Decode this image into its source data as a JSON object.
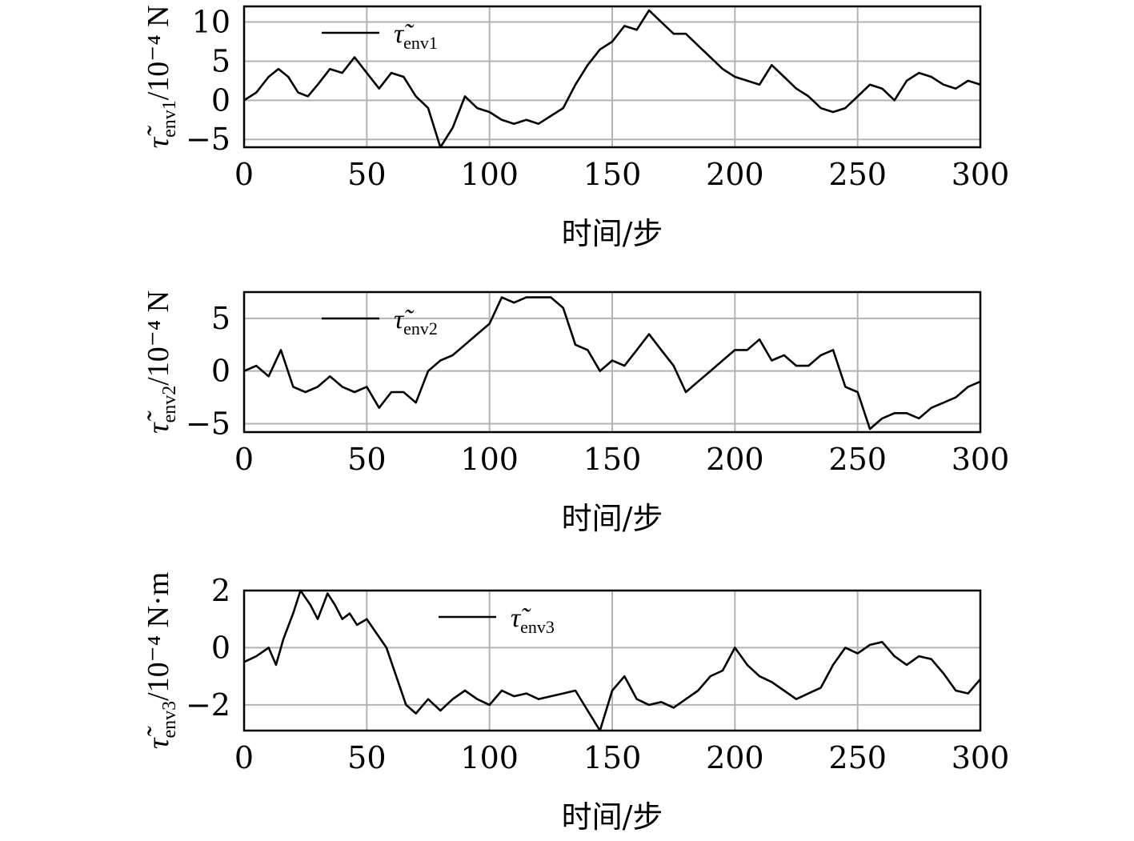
{
  "chart_data": [
    {
      "type": "line",
      "xlabel": "时间/步",
      "ylabel": {
        "prefix": "τ̃",
        "sub": "env1",
        "suffix": "/10⁻⁴ N"
      },
      "legend": {
        "symbol": "τ̃",
        "sub": "env1",
        "placement": "top-left"
      },
      "xlim": [
        0,
        300
      ],
      "ylim": [
        -6,
        12
      ],
      "xticks": [
        "0",
        "50",
        "100",
        "150",
        "200",
        "250",
        "300"
      ],
      "yticks": [
        {
          "v": 10,
          "label": "10"
        },
        {
          "v": 5,
          "label": "5"
        },
        {
          "v": 0,
          "label": "0"
        },
        {
          "v": -5,
          "label": "−5"
        }
      ],
      "grid": true,
      "series_color": "#000000",
      "x": [
        0,
        5,
        10,
        14,
        18,
        22,
        26,
        30,
        35,
        40,
        45,
        50,
        55,
        60,
        65,
        70,
        75,
        80,
        85,
        90,
        95,
        100,
        105,
        110,
        115,
        120,
        125,
        130,
        135,
        140,
        145,
        150,
        155,
        160,
        165,
        170,
        175,
        180,
        185,
        190,
        195,
        200,
        205,
        210,
        215,
        220,
        225,
        230,
        235,
        240,
        245,
        250,
        255,
        260,
        265,
        270,
        275,
        280,
        285,
        290,
        295,
        300
      ],
      "y": [
        0,
        1,
        3,
        4,
        3,
        1,
        0.5,
        2,
        4,
        3.5,
        5.5,
        3.5,
        1.5,
        3.5,
        3,
        0.5,
        -1,
        -6,
        -3.5,
        0.5,
        -1,
        -1.5,
        -2.5,
        -3,
        -2.5,
        -3,
        -2,
        -1,
        2,
        4.5,
        6.5,
        7.5,
        9.5,
        9,
        11.5,
        10,
        8.5,
        8.5,
        7,
        5.5,
        4,
        3,
        2.5,
        2,
        4.5,
        3,
        1.5,
        0.5,
        -1,
        -1.5,
        -1,
        0.5,
        2,
        1.5,
        0,
        2.5,
        3.5,
        3,
        2,
        1.5,
        2.5,
        2
      ]
    },
    {
      "type": "line",
      "xlabel": "时间/步",
      "ylabel": {
        "prefix": "τ̃",
        "sub": "env2",
        "suffix": "/10⁻⁴ N"
      },
      "legend": {
        "symbol": "τ̃",
        "sub": "env2",
        "placement": "top-left"
      },
      "xlim": [
        0,
        300
      ],
      "ylim": [
        -5.8,
        7.5
      ],
      "xticks": [
        "0",
        "50",
        "100",
        "150",
        "200",
        "250",
        "300"
      ],
      "yticks": [
        {
          "v": 5,
          "label": "5"
        },
        {
          "v": 0,
          "label": "0"
        },
        {
          "v": -5,
          "label": "−5"
        }
      ],
      "grid": true,
      "series_color": "#000000",
      "x": [
        0,
        5,
        10,
        15,
        20,
        25,
        30,
        35,
        40,
        45,
        50,
        55,
        60,
        65,
        70,
        75,
        80,
        85,
        90,
        95,
        100,
        105,
        110,
        115,
        120,
        125,
        130,
        135,
        140,
        145,
        150,
        155,
        160,
        165,
        170,
        175,
        180,
        185,
        190,
        195,
        200,
        205,
        210,
        215,
        220,
        225,
        230,
        235,
        240,
        245,
        250,
        255,
        260,
        265,
        270,
        275,
        280,
        285,
        290,
        295,
        300
      ],
      "y": [
        0,
        0.5,
        -0.5,
        2,
        -1.5,
        -2,
        -1.5,
        -0.5,
        -1.5,
        -2,
        -1.5,
        -3.5,
        -2,
        -2,
        -3,
        0,
        1,
        1.5,
        2.5,
        3.5,
        4.5,
        7,
        6.5,
        7,
        7,
        7,
        6,
        2.5,
        2,
        0,
        1,
        0.5,
        2,
        3.5,
        2,
        0.5,
        -2,
        -1,
        0,
        1,
        2,
        2,
        3,
        1,
        1.5,
        0.5,
        0.5,
        1.5,
        2,
        -1.5,
        -2,
        -5.5,
        -4.5,
        -4,
        -4,
        -4.5,
        -3.5,
        -3,
        -2.5,
        -1.5,
        -1
      ]
    },
    {
      "type": "line",
      "xlabel": "时间/步",
      "ylabel": {
        "prefix": "τ̃",
        "sub": "env3",
        "suffix": "/10⁻⁴ N·m"
      },
      "legend": {
        "symbol": "τ̃",
        "sub": "env3",
        "placement": "top-center"
      },
      "xlim": [
        0,
        300
      ],
      "ylim": [
        -2.9,
        2
      ],
      "xticks": [
        "0",
        "50",
        "100",
        "150",
        "200",
        "250",
        "300"
      ],
      "yticks": [
        {
          "v": 2,
          "label": "2"
        },
        {
          "v": 0,
          "label": "0"
        },
        {
          "v": -2,
          "label": "−2"
        }
      ],
      "grid": true,
      "series_color": "#000000",
      "x": [
        0,
        5,
        10,
        13,
        16,
        20,
        23,
        27,
        30,
        34,
        37,
        40,
        43,
        46,
        50,
        54,
        58,
        62,
        66,
        70,
        75,
        80,
        85,
        90,
        95,
        100,
        105,
        110,
        115,
        120,
        125,
        130,
        135,
        140,
        145,
        150,
        155,
        160,
        165,
        170,
        175,
        180,
        185,
        190,
        195,
        200,
        205,
        210,
        215,
        220,
        225,
        230,
        235,
        240,
        245,
        250,
        255,
        260,
        265,
        270,
        275,
        280,
        285,
        290,
        295,
        300
      ],
      "y": [
        -0.5,
        -0.3,
        0,
        -0.6,
        0.3,
        1.2,
        2,
        1.5,
        1,
        1.9,
        1.5,
        1,
        1.2,
        0.8,
        1,
        0.5,
        0,
        -1,
        -2,
        -2.3,
        -1.8,
        -2.2,
        -1.8,
        -1.5,
        -1.8,
        -2,
        -1.5,
        -1.7,
        -1.6,
        -1.8,
        -1.7,
        -1.6,
        -1.5,
        -2.2,
        -2.9,
        -1.5,
        -1,
        -1.8,
        -2,
        -1.9,
        -2.1,
        -1.8,
        -1.5,
        -1,
        -0.8,
        0,
        -0.6,
        -1,
        -1.2,
        -1.5,
        -1.8,
        -1.6,
        -1.4,
        -0.6,
        0,
        -0.2,
        0.1,
        0.2,
        -0.3,
        -0.6,
        -0.3,
        -0.4,
        -0.9,
        -1.5,
        -1.6,
        -1.1
      ]
    }
  ]
}
